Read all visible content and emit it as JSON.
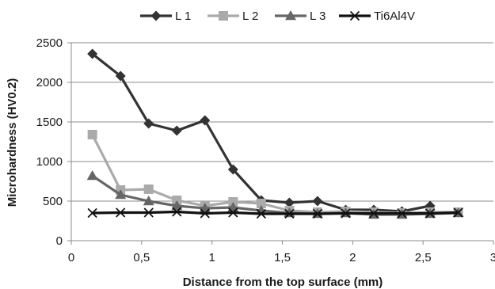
{
  "chart_data": {
    "type": "line",
    "title": "",
    "xlabel": "Distance from the top surface (mm)",
    "ylabel": "Microhardness (HV0.2)",
    "xlim": [
      0,
      3
    ],
    "ylim": [
      0,
      2500
    ],
    "x_ticks": [
      0,
      0.5,
      1,
      1.5,
      2,
      2.5,
      3
    ],
    "x_tick_labels": [
      "0",
      "0,5",
      "1",
      "1,5",
      "2",
      "2,5",
      "3"
    ],
    "y_ticks": [
      0,
      500,
      1000,
      1500,
      2000,
      2500
    ],
    "y_tick_labels": [
      "0",
      "500",
      "1000",
      "1500",
      "2000",
      "2500"
    ],
    "grid": "horizontal",
    "legend_position": "top",
    "series": [
      {
        "name": "L 1",
        "color": "#333333",
        "marker": "diamond",
        "points": [
          [
            0.15,
            2360
          ],
          [
            0.35,
            2080
          ],
          [
            0.55,
            1480
          ],
          [
            0.75,
            1390
          ],
          [
            0.95,
            1520
          ],
          [
            1.15,
            900
          ],
          [
            1.35,
            510
          ],
          [
            1.55,
            480
          ],
          [
            1.75,
            500
          ],
          [
            1.95,
            390
          ],
          [
            2.15,
            390
          ],
          [
            2.35,
            370
          ],
          [
            2.55,
            440
          ]
        ]
      },
      {
        "name": "L 2",
        "color": "#aaaaaa",
        "marker": "square",
        "points": [
          [
            0.15,
            1340
          ],
          [
            0.35,
            640
          ],
          [
            0.55,
            650
          ],
          [
            0.75,
            510
          ],
          [
            0.95,
            440
          ],
          [
            1.15,
            490
          ],
          [
            1.35,
            470
          ],
          [
            1.55,
            380
          ],
          [
            1.75,
            360
          ],
          [
            1.95,
            370
          ],
          [
            2.15,
            360
          ],
          [
            2.35,
            350
          ],
          [
            2.55,
            360
          ],
          [
            2.75,
            360
          ]
        ]
      },
      {
        "name": "L 3",
        "color": "#666666",
        "marker": "triangle",
        "points": [
          [
            0.15,
            820
          ],
          [
            0.35,
            580
          ],
          [
            0.55,
            500
          ],
          [
            0.75,
            440
          ],
          [
            0.95,
            410
          ],
          [
            1.15,
            420
          ],
          [
            1.35,
            380
          ],
          [
            1.55,
            350
          ],
          [
            1.75,
            340
          ],
          [
            1.95,
            350
          ],
          [
            2.15,
            330
          ],
          [
            2.35,
            330
          ],
          [
            2.55,
            340
          ],
          [
            2.75,
            350
          ]
        ]
      },
      {
        "name": "Ti6Al4V",
        "color": "#111111",
        "marker": "x",
        "points": [
          [
            0.15,
            350
          ],
          [
            0.35,
            355
          ],
          [
            0.55,
            355
          ],
          [
            0.75,
            365
          ],
          [
            0.95,
            345
          ],
          [
            1.15,
            355
          ],
          [
            1.35,
            340
          ],
          [
            1.55,
            340
          ],
          [
            1.75,
            340
          ],
          [
            1.95,
            345
          ],
          [
            2.15,
            345
          ],
          [
            2.35,
            345
          ],
          [
            2.55,
            345
          ],
          [
            2.75,
            355
          ]
        ]
      }
    ]
  }
}
